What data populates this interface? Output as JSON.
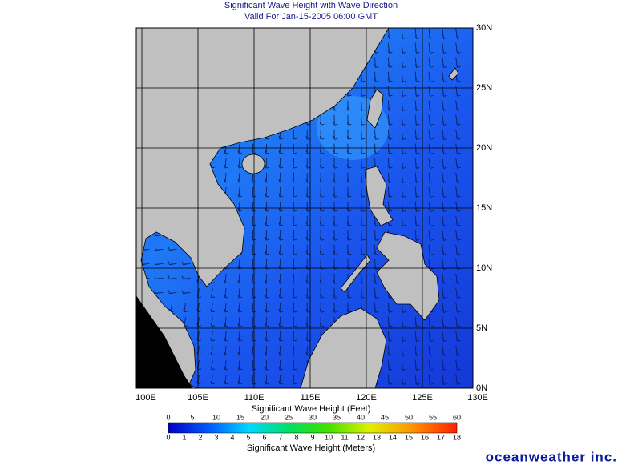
{
  "header": {
    "title": "Significant Wave Height with Wave Direction",
    "subtitle": "Valid For Jan-15-2005 06:00 GMT"
  },
  "map": {
    "lon_ticks": [
      {
        "value": 100,
        "label": "100E"
      },
      {
        "value": 105,
        "label": "105E"
      },
      {
        "value": 110,
        "label": "110E"
      },
      {
        "value": 115,
        "label": "115E"
      },
      {
        "value": 120,
        "label": "120E"
      },
      {
        "value": 125,
        "label": "125E"
      },
      {
        "value": 130,
        "label": "130E"
      }
    ],
    "lat_ticks": [
      {
        "value": 0,
        "label": "0N"
      },
      {
        "value": 5,
        "label": "5N"
      },
      {
        "value": 10,
        "label": "10N"
      },
      {
        "value": 15,
        "label": "15N"
      },
      {
        "value": 20,
        "label": "20N"
      },
      {
        "value": 25,
        "label": "25N"
      },
      {
        "value": 30,
        "label": "30N"
      }
    ]
  },
  "legend": {
    "feet_title": "Significant Wave Height (Feet)",
    "feet_ticks": [
      0,
      5,
      10,
      15,
      20,
      25,
      30,
      35,
      40,
      45,
      50,
      55,
      60
    ],
    "meters_title": "Significant Wave Height (Meters)",
    "meters_ticks": [
      0,
      1,
      2,
      3,
      4,
      5,
      6,
      7,
      8,
      9,
      10,
      11,
      12,
      13,
      14,
      15,
      16,
      17,
      18
    ]
  },
  "footer": {
    "logo": "oceanweather inc."
  }
}
